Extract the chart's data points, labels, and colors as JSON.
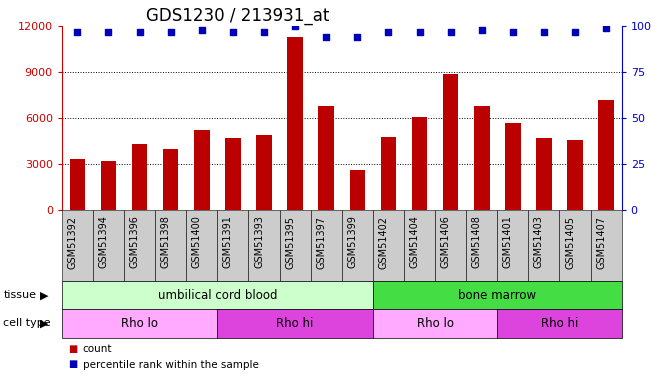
{
  "title": "GDS1230 / 213931_at",
  "samples": [
    "GSM51392",
    "GSM51394",
    "GSM51396",
    "GSM51398",
    "GSM51400",
    "GSM51391",
    "GSM51393",
    "GSM51395",
    "GSM51397",
    "GSM51399",
    "GSM51402",
    "GSM51404",
    "GSM51406",
    "GSM51408",
    "GSM51401",
    "GSM51403",
    "GSM51405",
    "GSM51407"
  ],
  "counts": [
    3300,
    3200,
    4300,
    4000,
    5200,
    4700,
    4900,
    11300,
    6800,
    2600,
    4800,
    6100,
    8900,
    6800,
    5700,
    4700,
    4600,
    7200
  ],
  "percentile_ranks": [
    97,
    97,
    97,
    97,
    98,
    97,
    97,
    100,
    94,
    94,
    97,
    97,
    97,
    98,
    97,
    97,
    97,
    99
  ],
  "bar_color": "#bb0000",
  "dot_color": "#0000bb",
  "ylim_left": [
    0,
    12000
  ],
  "ylim_right": [
    0,
    100
  ],
  "yticks_left": [
    0,
    3000,
    6000,
    9000,
    12000
  ],
  "yticks_right": [
    0,
    25,
    50,
    75,
    100
  ],
  "ytick_labels_right": [
    "0",
    "25",
    "50",
    "75",
    "100%"
  ],
  "grid_lines": [
    3000,
    6000,
    9000
  ],
  "tissue_groups": [
    {
      "label": "umbilical cord blood",
      "start": 0,
      "end": 10,
      "color": "#ccffcc"
    },
    {
      "label": "bone marrow",
      "start": 10,
      "end": 18,
      "color": "#44dd44"
    }
  ],
  "cell_type_groups": [
    {
      "label": "Rho lo",
      "start": 0,
      "end": 5,
      "color": "#ffaaff"
    },
    {
      "label": "Rho hi",
      "start": 5,
      "end": 10,
      "color": "#dd44dd"
    },
    {
      "label": "Rho lo",
      "start": 10,
      "end": 14,
      "color": "#ffaaff"
    },
    {
      "label": "Rho hi",
      "start": 14,
      "end": 18,
      "color": "#dd44dd"
    }
  ],
  "legend_items": [
    {
      "label": "count",
      "color": "#bb0000"
    },
    {
      "label": "percentile rank within the sample",
      "color": "#0000bb"
    }
  ],
  "tissue_label": "tissue",
  "cell_type_label": "cell type",
  "bg_color": "#ffffff",
  "axis_color_left": "#cc0000",
  "axis_color_right": "#0000cc",
  "title_fontsize": 12,
  "tick_label_fontsize": 7,
  "bar_width": 0.5,
  "xtick_bg_color": "#cccccc"
}
